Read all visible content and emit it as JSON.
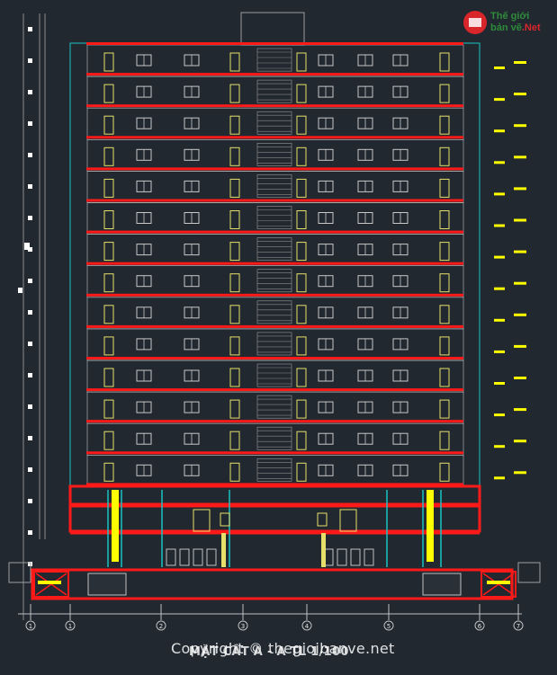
{
  "drawing": {
    "title": "MẶT CẮT A - A  TL 1/100",
    "watermark": "Copyright © thegioibanve.net"
  },
  "logo": {
    "line1": "Thế giới",
    "line2": "bản vẽ",
    "line2_accent": ".Net"
  },
  "axis_labels": [
    "1",
    "1",
    "2",
    "3",
    "4",
    "5",
    "6",
    "7"
  ],
  "colors": {
    "background": "#212830",
    "slab": "#ff1a1a",
    "outline": "#19c3c3",
    "window": "#c8c8c8",
    "door": "#e6e06a",
    "level_marker": "#ffff00",
    "dim": "#ffffff"
  },
  "building": {
    "typical_floors": 14,
    "podium_floors": 3
  }
}
